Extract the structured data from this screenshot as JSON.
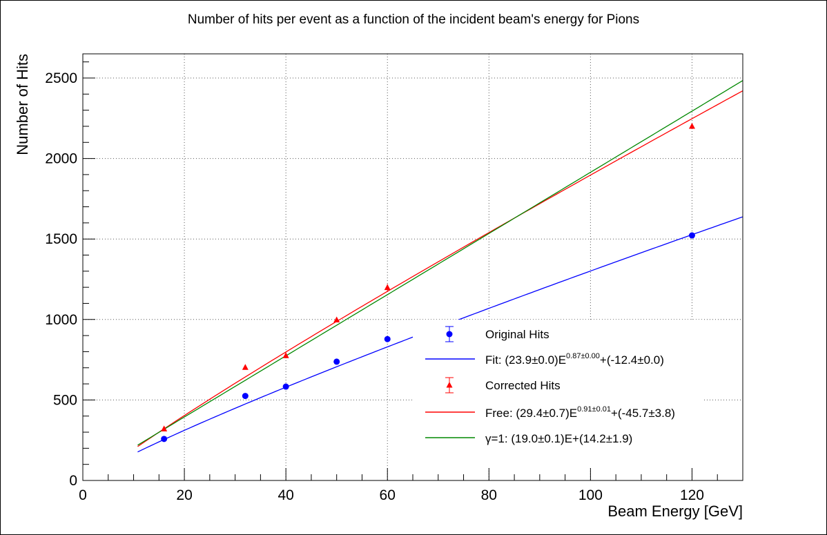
{
  "chart_data": {
    "type": "scatter",
    "title": "Number of hits per event as a function of the incident beam's energy for Pions",
    "xlabel": "Beam Energy [GeV]",
    "ylabel": "Number of Hits",
    "xlim": [
      0,
      130
    ],
    "ylim": [
      0,
      2650
    ],
    "xticks": [
      0,
      20,
      40,
      60,
      80,
      100,
      120
    ],
    "yticks": [
      0,
      500,
      1000,
      1500,
      2000,
      2500
    ],
    "grid": true,
    "legend_position": "bottom-right",
    "series": [
      {
        "name": "Original Hits",
        "kind": "points",
        "marker": "circle",
        "color": "#0000ff",
        "x": [
          16,
          32,
          40,
          50,
          60,
          120
        ],
        "y": [
          258,
          525,
          583,
          738,
          878,
          1522
        ]
      },
      {
        "name": "Fit: (23.9±0.0)E",
        "name_sup": "0.87±0.00",
        "name_suffix": "+(-12.4±0.0)",
        "kind": "curve",
        "color": "#0000ff",
        "params": {
          "a": 23.9,
          "b": 0.87,
          "c": -12.4
        },
        "x_range": [
          10.8,
          130
        ]
      },
      {
        "name": "Corrected Hits",
        "kind": "points",
        "marker": "triangle",
        "color": "#ff0000",
        "x": [
          16,
          32,
          40,
          50,
          60,
          120
        ],
        "y": [
          320,
          702,
          775,
          997,
          1198,
          2200
        ],
        "yerr": [
          8,
          10,
          10,
          10,
          22,
          12
        ]
      },
      {
        "name": "Free: (29.4±0.7)E",
        "name_sup": "0.91±0.01",
        "name_suffix": "+(-45.7±3.8)",
        "kind": "curve",
        "color": "#ff0000",
        "params": {
          "a": 29.4,
          "b": 0.91,
          "c": -45.7
        },
        "x_range": [
          10.8,
          130
        ]
      },
      {
        "name": "γ=1: (19.0±0.1)E+(14.2±1.9)",
        "kind": "curve",
        "color": "#008800",
        "params": {
          "a": 19.0,
          "b": 1.0,
          "c": 14.2
        },
        "x_range": [
          10.8,
          130
        ]
      }
    ]
  }
}
